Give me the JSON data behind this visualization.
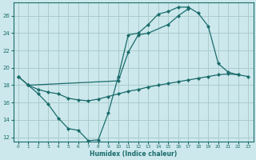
{
  "xlabel": "Humidex (Indice chaleur)",
  "bg_color": "#cce8ec",
  "grid_color": "#aacccc",
  "line_color": "#1a6b6b",
  "xlim": [
    -0.5,
    23.5
  ],
  "ylim": [
    11.5,
    27.5
  ],
  "xticks": [
    0,
    1,
    2,
    3,
    4,
    5,
    6,
    7,
    8,
    9,
    10,
    11,
    12,
    13,
    14,
    15,
    16,
    17,
    18,
    19,
    20,
    21,
    22,
    23
  ],
  "yticks": [
    12,
    14,
    16,
    18,
    20,
    22,
    24,
    26
  ],
  "ytick_labels": [
    "12",
    "14",
    "16",
    "18",
    "20",
    "22",
    "24",
    "26"
  ],
  "line1_x": [
    0,
    1,
    2,
    3,
    4,
    5,
    6,
    7,
    8,
    9,
    10,
    11,
    12,
    13,
    14,
    15,
    16,
    17,
    18,
    19,
    20,
    21,
    22
  ],
  "line1_y": [
    19.0,
    18.0,
    17.0,
    15.8,
    14.2,
    13.0,
    12.8,
    11.6,
    11.7,
    14.8,
    19.0,
    23.8,
    24.0,
    25.0,
    26.2,
    26.5,
    27.0,
    27.0,
    26.3,
    24.8,
    20.5,
    19.5,
    19.2
  ],
  "line2_x": [
    0,
    1,
    10,
    11,
    12,
    13,
    15,
    16,
    17
  ],
  "line2_y": [
    19.0,
    18.0,
    18.5,
    21.8,
    23.8,
    24.0,
    25.0,
    26.0,
    26.8
  ],
  "line3_x": [
    1,
    2,
    3,
    4,
    5,
    6,
    7,
    8,
    9,
    10,
    11,
    12,
    13,
    14,
    15,
    16,
    17,
    18,
    19,
    20,
    21,
    22,
    23
  ],
  "line3_y": [
    18.0,
    17.5,
    17.2,
    17.0,
    16.5,
    16.3,
    16.2,
    16.4,
    16.7,
    17.0,
    17.3,
    17.5,
    17.8,
    18.0,
    18.2,
    18.4,
    18.6,
    18.8,
    19.0,
    19.2,
    19.3,
    19.2,
    19.0
  ]
}
